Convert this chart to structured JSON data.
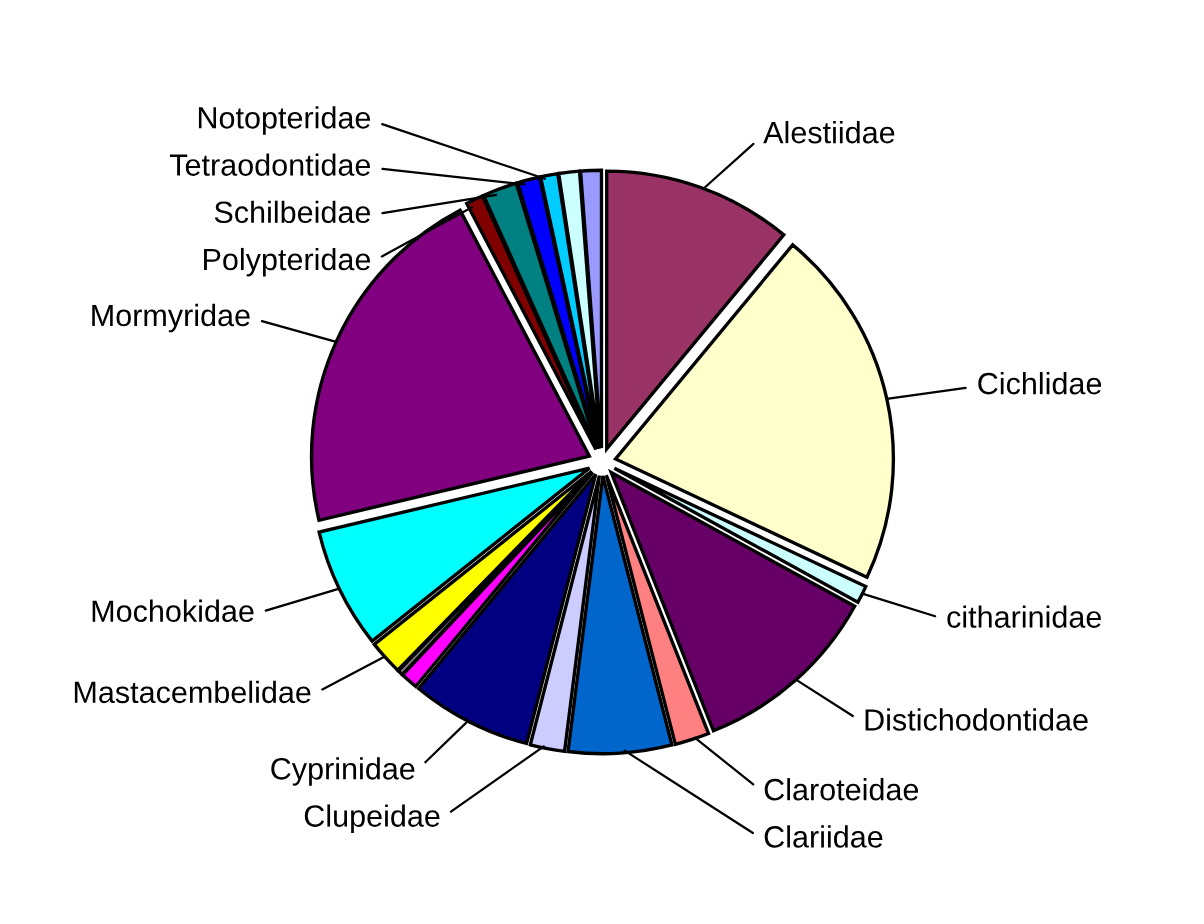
{
  "chart_data": {
    "type": "pie",
    "categories": [
      "Alestiidae",
      "Cichlidae",
      "citharinidae",
      "Distichodontidae",
      "Claroteidae",
      "Clariidae",
      "Clupeidae",
      "Cyprinidae",
      null,
      null,
      "Mastacembelidae",
      "Mochokidae",
      "Mormyridae",
      "Polypteridae",
      "Schilbeidae",
      "Tetraodontidae",
      "Notopteridae",
      null,
      null
    ],
    "values": [
      11,
      21,
      1,
      11,
      2,
      6,
      2,
      7,
      1,
      0.3,
      2,
      7,
      21,
      1,
      2,
      1.3,
      1,
      1.2,
      1.2
    ],
    "colors": [
      "#993366",
      "#ffffcc",
      "#ccffff",
      "#660066",
      "#ff8080",
      "#0066cc",
      "#ccccff",
      "#000080",
      "#ff00ff",
      "#808080",
      "#ffff00",
      "#00ffff",
      "#800080",
      "#800000",
      "#008080",
      "#0000ff",
      "#00ccff",
      "#ccffff",
      "#9999ff"
    ]
  }
}
